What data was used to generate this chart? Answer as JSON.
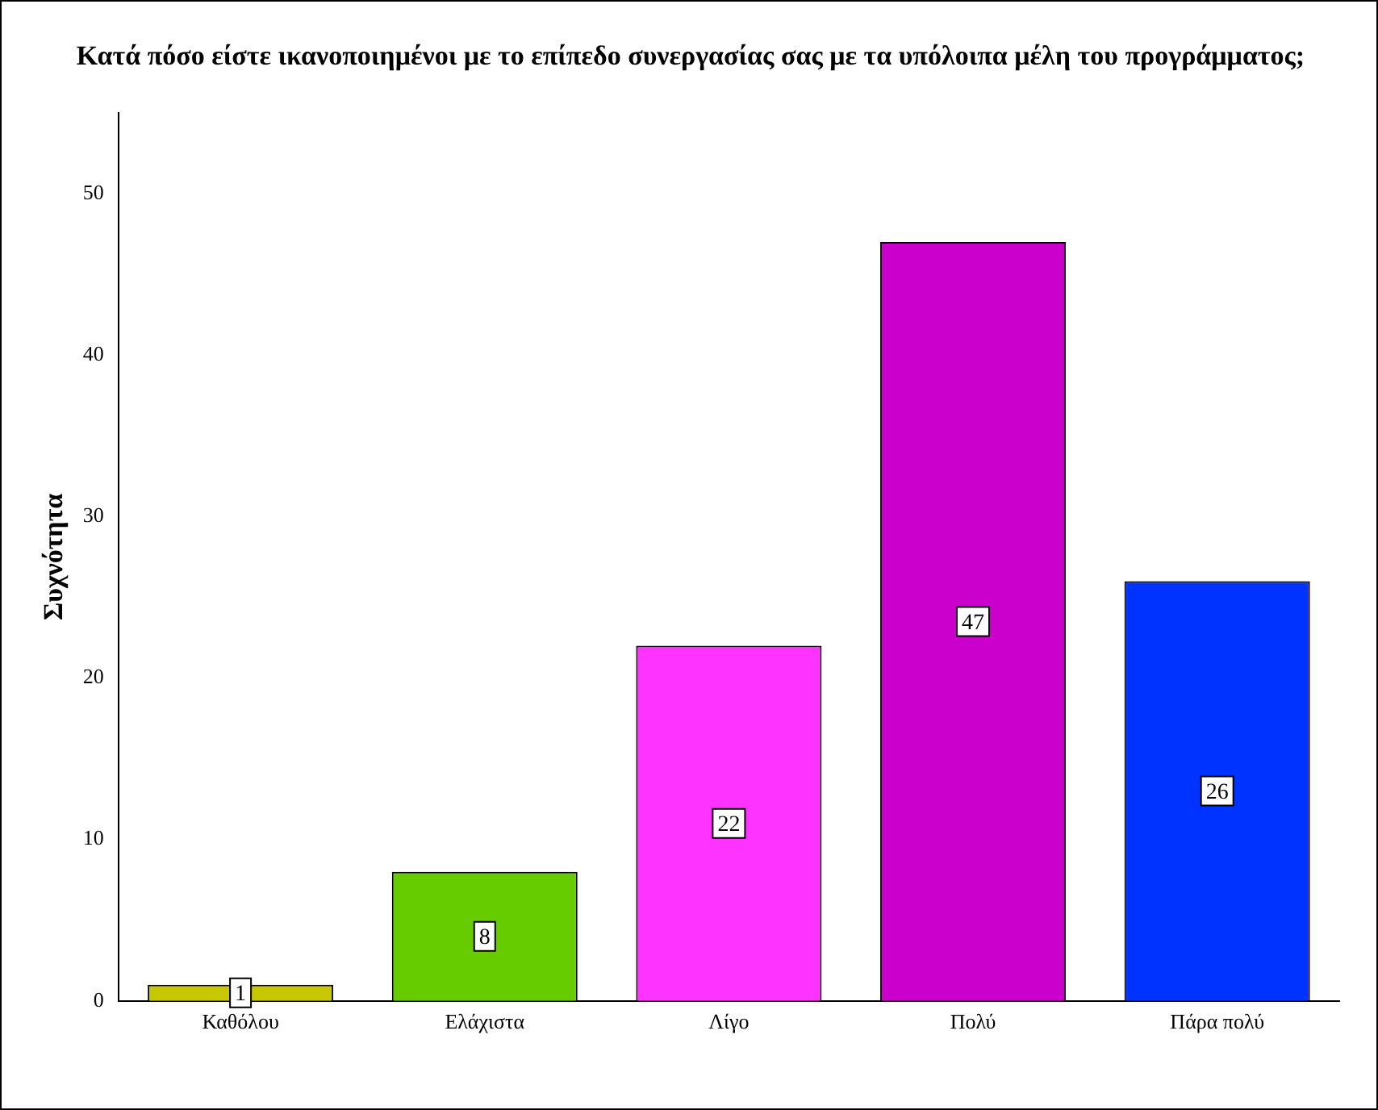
{
  "chart_data": {
    "type": "bar",
    "title": "Κατά πόσο είστε ικανοποιημένοι με το επίπεδο συνεργασίας σας με τα υπόλοιπα μέλη του προγράμματος;",
    "ylabel": "Συχνότητα",
    "categories": [
      "Καθόλου",
      "Ελάχιστα",
      "Λίγο",
      "Πολύ",
      "Πάρα πολύ"
    ],
    "values": [
      1,
      8,
      22,
      47,
      26
    ],
    "colors": [
      "#c8c800",
      "#66cc00",
      "#ff33ff",
      "#cc00cc",
      "#0033ff"
    ],
    "ylim": [
      0,
      55
    ],
    "yticks": [
      0,
      10,
      20,
      30,
      40,
      50
    ],
    "grid": false,
    "legend": false,
    "data_labels": true
  }
}
